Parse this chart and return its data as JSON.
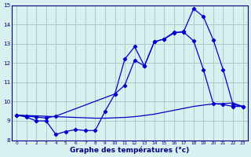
{
  "xlabel": "Graphe des températures (°c)",
  "background_color": "#d8f0f0",
  "grid_color": "#b0c8c8",
  "line_color": "#0000cc",
  "xlim": [
    -0.5,
    23.5
  ],
  "ylim": [
    8,
    15
  ],
  "xticks": [
    0,
    1,
    2,
    3,
    4,
    5,
    6,
    7,
    8,
    9,
    10,
    11,
    12,
    13,
    14,
    15,
    16,
    17,
    18,
    19,
    20,
    21,
    22,
    23
  ],
  "yticks": [
    8,
    9,
    10,
    11,
    12,
    13,
    14,
    15
  ],
  "line1_x": [
    0,
    1,
    2,
    3,
    4,
    5,
    6,
    7,
    8,
    9,
    10,
    11,
    12,
    13,
    14,
    15,
    16,
    17,
    18,
    19,
    20,
    21,
    22,
    23
  ],
  "line1_y": [
    9.3,
    9.2,
    9.0,
    9.0,
    8.3,
    8.45,
    8.55,
    8.5,
    8.5,
    9.5,
    10.4,
    10.85,
    12.15,
    11.85,
    13.1,
    13.25,
    13.6,
    13.6,
    13.15,
    11.65,
    9.9,
    9.85,
    9.75,
    9.75
  ],
  "line2_x": [
    0,
    1,
    2,
    3,
    4,
    5,
    6,
    7,
    8,
    9,
    10,
    11,
    12,
    13,
    14,
    15,
    16,
    17,
    18,
    19,
    20,
    21,
    22,
    23
  ],
  "line2_y": [
    9.3,
    9.28,
    9.26,
    9.24,
    9.22,
    9.2,
    9.18,
    9.16,
    9.14,
    9.14,
    9.16,
    9.18,
    9.22,
    9.28,
    9.35,
    9.45,
    9.55,
    9.65,
    9.75,
    9.82,
    9.88,
    9.9,
    9.93,
    9.75
  ],
  "line3_x": [
    0,
    1,
    2,
    3,
    4,
    10,
    11,
    12,
    13,
    14,
    15,
    16,
    17,
    18,
    19,
    20,
    21,
    22,
    23
  ],
  "line3_y": [
    9.3,
    9.25,
    9.2,
    9.15,
    9.25,
    10.4,
    12.2,
    12.85,
    11.85,
    13.1,
    13.25,
    13.55,
    13.65,
    14.82,
    14.4,
    13.2,
    11.65,
    9.85,
    9.75
  ]
}
